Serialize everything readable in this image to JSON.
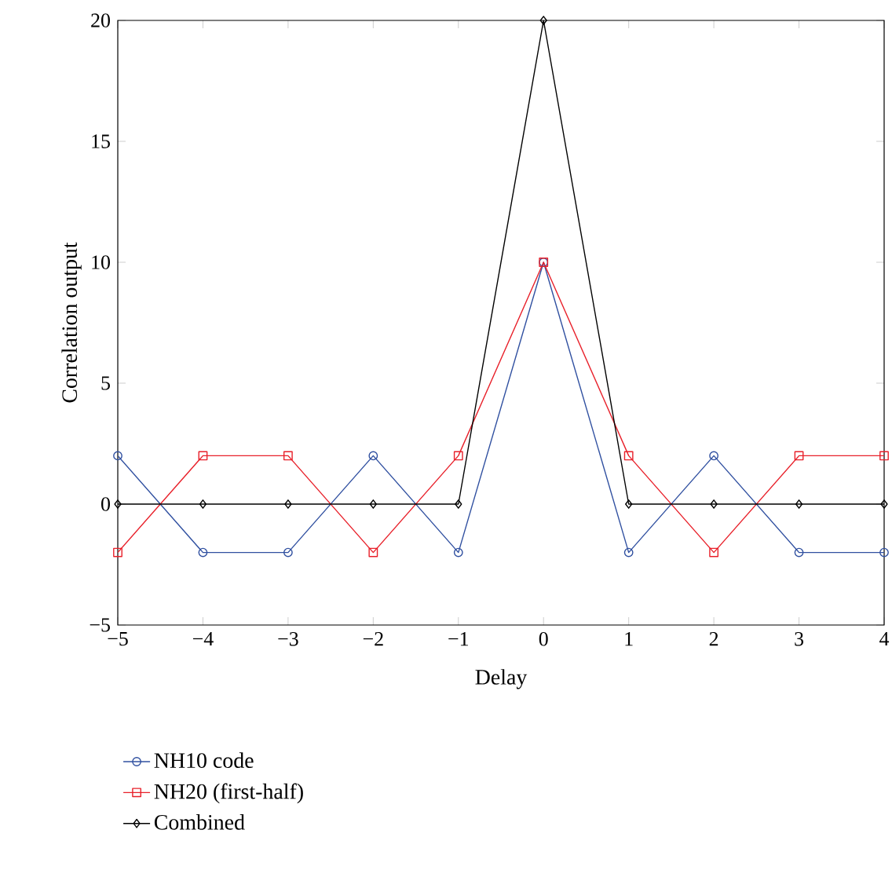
{
  "chart_data": {
    "type": "line",
    "xlabel": "Delay",
    "ylabel": "Correlation output",
    "x": [
      -5,
      -4,
      -3,
      -2,
      -1,
      0,
      1,
      2,
      3,
      4
    ],
    "series": [
      {
        "name": "NH10 code",
        "color": "#3050a0",
        "marker": "circle",
        "values": [
          2,
          -2,
          -2,
          2,
          -2,
          10,
          -2,
          2,
          -2,
          -2
        ]
      },
      {
        "name": "NH20 (first-half)",
        "color": "#e8202a",
        "marker": "square",
        "values": [
          -2,
          2,
          2,
          -2,
          2,
          10,
          2,
          -2,
          2,
          2
        ]
      },
      {
        "name": "Combined",
        "color": "#000000",
        "marker": "diamond",
        "values": [
          0,
          0,
          0,
          0,
          0,
          20,
          0,
          0,
          0,
          0
        ]
      }
    ],
    "xlim": [
      -5,
      4
    ],
    "ylim": [
      -5,
      20
    ],
    "xticks": [
      {
        "value": -5,
        "label": "−5"
      },
      {
        "value": -4,
        "label": "−4"
      },
      {
        "value": -3,
        "label": "−3"
      },
      {
        "value": -2,
        "label": "−2"
      },
      {
        "value": -1,
        "label": "−1"
      },
      0,
      1,
      2,
      3,
      4
    ],
    "yticks": [
      {
        "value": -5,
        "label": "−5"
      },
      0,
      5,
      10,
      15,
      20
    ],
    "grid": false,
    "legend": "bottom",
    "line_style": "solid"
  }
}
